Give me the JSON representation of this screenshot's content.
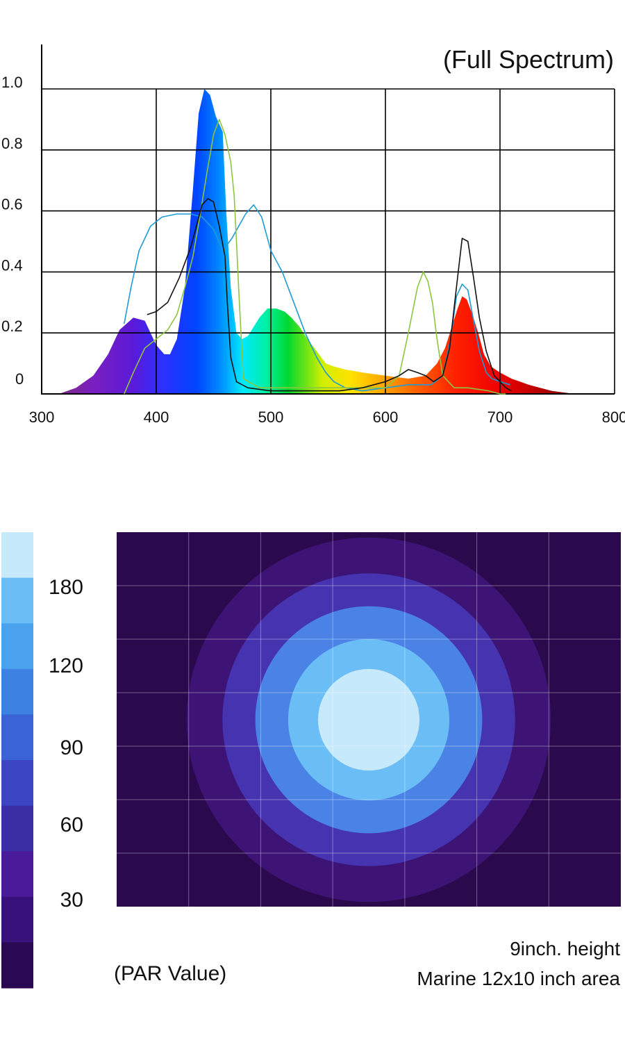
{
  "chart_data": [
    {
      "type": "area",
      "title": "(Full Spectrum)",
      "xlabel": "",
      "ylabel": "",
      "xlim": [
        300,
        800
      ],
      "ylim": [
        0,
        1.0
      ],
      "x_ticks": [
        300,
        400,
        500,
        600,
        700,
        800
      ],
      "y_ticks": [
        {
          "value": 0,
          "label": "0"
        },
        {
          "value": 0.2,
          "label": "0.2"
        },
        {
          "value": 0.4,
          "label": "0.4"
        },
        {
          "value": 0.6,
          "label": "0.6"
        },
        {
          "value": 0.8,
          "label": "0.8"
        },
        {
          "value": 1.0,
          "label": "1.0"
        }
      ],
      "grid": true,
      "filled_spectrum": {
        "fill": "rainbow gradient (violet to deep red)",
        "x": [
          315,
          330,
          345,
          358,
          368,
          380,
          390,
          400,
          407,
          412,
          418,
          425,
          432,
          437,
          442,
          447,
          452,
          458,
          461,
          465,
          470,
          475,
          480,
          485,
          490,
          497,
          505,
          512,
          518,
          525,
          532,
          540,
          548,
          555,
          565,
          580,
          600,
          620,
          635,
          645,
          652,
          658,
          663,
          667,
          671,
          676,
          681,
          686,
          692,
          700,
          710,
          725,
          745,
          765,
          775
        ],
        "y": [
          0.0,
          0.02,
          0.06,
          0.13,
          0.21,
          0.25,
          0.24,
          0.16,
          0.13,
          0.13,
          0.18,
          0.35,
          0.67,
          0.92,
          1.0,
          0.98,
          0.91,
          0.86,
          0.6,
          0.35,
          0.2,
          0.18,
          0.19,
          0.22,
          0.25,
          0.28,
          0.28,
          0.27,
          0.25,
          0.22,
          0.18,
          0.14,
          0.1,
          0.09,
          0.08,
          0.07,
          0.06,
          0.05,
          0.06,
          0.1,
          0.15,
          0.22,
          0.28,
          0.32,
          0.31,
          0.26,
          0.2,
          0.13,
          0.09,
          0.07,
          0.05,
          0.03,
          0.01,
          0.0,
          0.0
        ]
      },
      "series": [
        {
          "color": "#1e9bd7",
          "x": [
            372,
            378,
            385,
            395,
            405,
            418,
            430,
            440,
            450,
            458,
            466,
            472,
            478,
            485,
            492,
            500,
            510,
            520,
            530,
            540,
            548,
            555,
            565,
            580,
            600,
            620,
            640,
            650,
            657,
            662,
            667,
            672,
            677,
            682,
            688,
            693,
            700,
            709
          ],
          "y": [
            0.23,
            0.35,
            0.47,
            0.55,
            0.58,
            0.59,
            0.59,
            0.58,
            0.54,
            0.47,
            0.51,
            0.55,
            0.59,
            0.62,
            0.58,
            0.47,
            0.4,
            0.3,
            0.2,
            0.12,
            0.07,
            0.04,
            0.02,
            0.01,
            0.02,
            0.03,
            0.03,
            0.06,
            0.18,
            0.32,
            0.36,
            0.34,
            0.24,
            0.14,
            0.07,
            0.05,
            0.04,
            0.03
          ]
        },
        {
          "color": "#8cc63f",
          "x": [
            372,
            380,
            390,
            400,
            410,
            418,
            425,
            432,
            438,
            444,
            450,
            455,
            460,
            465,
            468,
            470,
            472,
            476,
            490,
            520,
            560,
            600,
            612,
            620,
            628,
            633,
            637,
            641,
            645,
            650,
            660,
            672,
            690,
            700,
            705
          ],
          "y": [
            0.0,
            0.07,
            0.15,
            0.18,
            0.21,
            0.26,
            0.35,
            0.45,
            0.58,
            0.72,
            0.85,
            0.9,
            0.85,
            0.76,
            0.65,
            0.5,
            0.34,
            0.05,
            0.02,
            0.02,
            0.02,
            0.02,
            0.06,
            0.2,
            0.35,
            0.4,
            0.37,
            0.3,
            0.18,
            0.06,
            0.02,
            0.02,
            0.01,
            0.0,
            0.0
          ]
        },
        {
          "color": "#111111",
          "x": [
            392,
            400,
            410,
            420,
            430,
            440,
            445,
            450,
            455,
            460,
            462,
            465,
            470,
            480,
            500,
            530,
            560,
            580,
            600,
            612,
            620,
            628,
            635,
            642,
            650,
            656,
            662,
            667,
            672,
            677,
            682,
            688,
            695,
            705,
            710
          ],
          "y": [
            0.26,
            0.27,
            0.3,
            0.38,
            0.48,
            0.62,
            0.64,
            0.63,
            0.55,
            0.45,
            0.3,
            0.12,
            0.04,
            0.02,
            0.01,
            0.01,
            0.01,
            0.02,
            0.04,
            0.06,
            0.08,
            0.07,
            0.06,
            0.04,
            0.06,
            0.15,
            0.35,
            0.51,
            0.5,
            0.38,
            0.25,
            0.14,
            0.06,
            0.02,
            0.01
          ]
        }
      ]
    },
    {
      "type": "heatmap",
      "title": "(PAR Value)",
      "colorbar": {
        "labels": [
          "180",
          "120",
          "90",
          "60",
          "30"
        ],
        "colors": [
          "#c7e9fc",
          "#6bbdf5",
          "#4aa2ee",
          "#3d82e2",
          "#3a63d6",
          "#3c46c2",
          "#3c2ea4",
          "#4a1b98",
          "#38127a",
          "#290a52"
        ]
      },
      "contour_levels": [
        {
          "radius_in": 0.85,
          "color": "#c7e9fc"
        },
        {
          "radius_in": 1.35,
          "color": "#6bbdf5"
        },
        {
          "radius_in": 1.9,
          "color": "#4a82e5"
        },
        {
          "radius_in": 2.45,
          "color": "#4633b0"
        },
        {
          "radius_in": 3.05,
          "color": "#3d1475"
        }
      ],
      "background": "#2a0a4d",
      "area_in": [
        12,
        10
      ],
      "notes": [
        "9inch. height",
        "Marine 12x10 inch area"
      ]
    }
  ]
}
